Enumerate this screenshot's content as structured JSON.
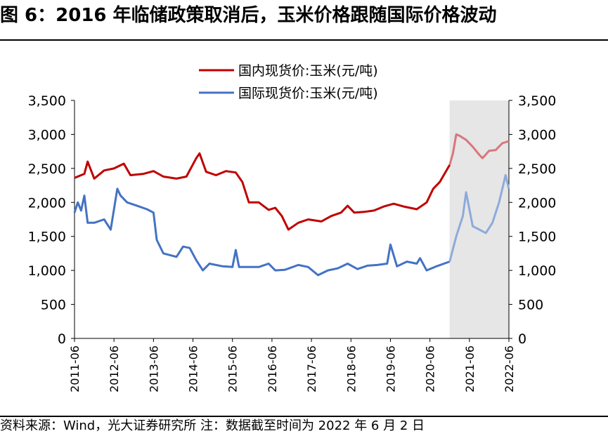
{
  "figure": {
    "title": "图 6：2016 年临储政策取消后，玉米价格跟随国际价格波动",
    "source": "资料来源：Wind，光大证券研究所  注：数据截至时间为 2022 年 6 月 2 日"
  },
  "chart_data": {
    "type": "line",
    "title": "",
    "xlabel": "",
    "ylabel": "",
    "ylim": [
      0,
      3500
    ],
    "yticks": [
      "0",
      "500",
      "1,000",
      "1,500",
      "2,000",
      "2,500",
      "3,000",
      "3,500"
    ],
    "y2ticks": [
      "0",
      "500",
      "1,000",
      "1,500",
      "2,000",
      "2,500",
      "3,000",
      "3,500"
    ],
    "xlim": [
      "2011-06",
      "2022-06"
    ],
    "xticks": [
      "2011-06",
      "2012-06",
      "2013-06",
      "2014-06",
      "2015-06",
      "2016-06",
      "2017-06",
      "2018-06",
      "2019-06",
      "2020-06",
      "2021-06",
      "2022-06"
    ],
    "grid": false,
    "legend": "top-center",
    "shaded_region": {
      "from": "2020-12",
      "to": "2022-06",
      "color": "#e6e6e6"
    },
    "series": [
      {
        "name": "国内现货价:玉米(元/吨)",
        "color": "#c00000",
        "shaded_color": "#d9767c",
        "points": [
          [
            "2011-06",
            2360
          ],
          [
            "2011-09",
            2420
          ],
          [
            "2011-10",
            2600
          ],
          [
            "2011-12",
            2350
          ],
          [
            "2012-03",
            2470
          ],
          [
            "2012-06",
            2500
          ],
          [
            "2012-09",
            2570
          ],
          [
            "2012-11",
            2400
          ],
          [
            "2013-03",
            2420
          ],
          [
            "2013-06",
            2460
          ],
          [
            "2013-09",
            2380
          ],
          [
            "2014-01",
            2350
          ],
          [
            "2014-04",
            2380
          ],
          [
            "2014-07",
            2650
          ],
          [
            "2014-08",
            2720
          ],
          [
            "2014-10",
            2450
          ],
          [
            "2015-01",
            2400
          ],
          [
            "2015-04",
            2460
          ],
          [
            "2015-07",
            2440
          ],
          [
            "2015-09",
            2300
          ],
          [
            "2015-11",
            2000
          ],
          [
            "2016-02",
            2000
          ],
          [
            "2016-05",
            1890
          ],
          [
            "2016-07",
            1920
          ],
          [
            "2016-09",
            1800
          ],
          [
            "2016-11",
            1600
          ],
          [
            "2017-02",
            1700
          ],
          [
            "2017-05",
            1750
          ],
          [
            "2017-09",
            1720
          ],
          [
            "2017-12",
            1800
          ],
          [
            "2018-03",
            1850
          ],
          [
            "2018-05",
            1950
          ],
          [
            "2018-07",
            1850
          ],
          [
            "2018-10",
            1860
          ],
          [
            "2019-01",
            1880
          ],
          [
            "2019-04",
            1940
          ],
          [
            "2019-07",
            1980
          ],
          [
            "2019-10",
            1940
          ],
          [
            "2020-02",
            1900
          ],
          [
            "2020-05",
            2000
          ],
          [
            "2020-07",
            2200
          ],
          [
            "2020-09",
            2300
          ],
          [
            "2020-12",
            2550
          ],
          [
            "2021-01",
            2720
          ],
          [
            "2021-02",
            3000
          ],
          [
            "2021-03",
            2980
          ],
          [
            "2021-05",
            2920
          ],
          [
            "2021-07",
            2820
          ],
          [
            "2021-09",
            2700
          ],
          [
            "2021-10",
            2650
          ],
          [
            "2021-12",
            2760
          ],
          [
            "2022-02",
            2770
          ],
          [
            "2022-04",
            2870
          ],
          [
            "2022-06",
            2900
          ]
        ]
      },
      {
        "name": "国际现货价:玉米(元/吨)",
        "color": "#4472c4",
        "shaded_color": "#8eaadb",
        "points": [
          [
            "2011-06",
            1850
          ],
          [
            "2011-07",
            2000
          ],
          [
            "2011-08",
            1880
          ],
          [
            "2011-09",
            2100
          ],
          [
            "2011-10",
            1700
          ],
          [
            "2011-12",
            1700
          ],
          [
            "2012-03",
            1750
          ],
          [
            "2012-05",
            1600
          ],
          [
            "2012-07",
            2200
          ],
          [
            "2012-08",
            2100
          ],
          [
            "2012-10",
            2000
          ],
          [
            "2013-01",
            1950
          ],
          [
            "2013-04",
            1900
          ],
          [
            "2013-06",
            1850
          ],
          [
            "2013-07",
            1450
          ],
          [
            "2013-09",
            1250
          ],
          [
            "2014-01",
            1200
          ],
          [
            "2014-03",
            1350
          ],
          [
            "2014-05",
            1330
          ],
          [
            "2014-07",
            1150
          ],
          [
            "2014-09",
            1000
          ],
          [
            "2014-11",
            1100
          ],
          [
            "2015-03",
            1060
          ],
          [
            "2015-06",
            1050
          ],
          [
            "2015-07",
            1300
          ],
          [
            "2015-08",
            1050
          ],
          [
            "2015-11",
            1050
          ],
          [
            "2016-02",
            1050
          ],
          [
            "2016-05",
            1100
          ],
          [
            "2016-07",
            1000
          ],
          [
            "2016-10",
            1010
          ],
          [
            "2017-02",
            1080
          ],
          [
            "2017-05",
            1050
          ],
          [
            "2017-08",
            930
          ],
          [
            "2017-11",
            1000
          ],
          [
            "2018-02",
            1030
          ],
          [
            "2018-05",
            1100
          ],
          [
            "2018-08",
            1020
          ],
          [
            "2018-11",
            1070
          ],
          [
            "2019-02",
            1080
          ],
          [
            "2019-05",
            1100
          ],
          [
            "2019-06",
            1380
          ],
          [
            "2019-08",
            1060
          ],
          [
            "2019-11",
            1130
          ],
          [
            "2020-02",
            1100
          ],
          [
            "2020-03",
            1180
          ],
          [
            "2020-05",
            1000
          ],
          [
            "2020-08",
            1060
          ],
          [
            "2020-12",
            1130
          ],
          [
            "2021-02",
            1500
          ],
          [
            "2021-04",
            1800
          ],
          [
            "2021-05",
            2150
          ],
          [
            "2021-07",
            1650
          ],
          [
            "2021-09",
            1600
          ],
          [
            "2021-11",
            1550
          ],
          [
            "2022-01",
            1700
          ],
          [
            "2022-03",
            2000
          ],
          [
            "2022-05",
            2400
          ],
          [
            "2022-06",
            2200
          ]
        ]
      }
    ]
  }
}
